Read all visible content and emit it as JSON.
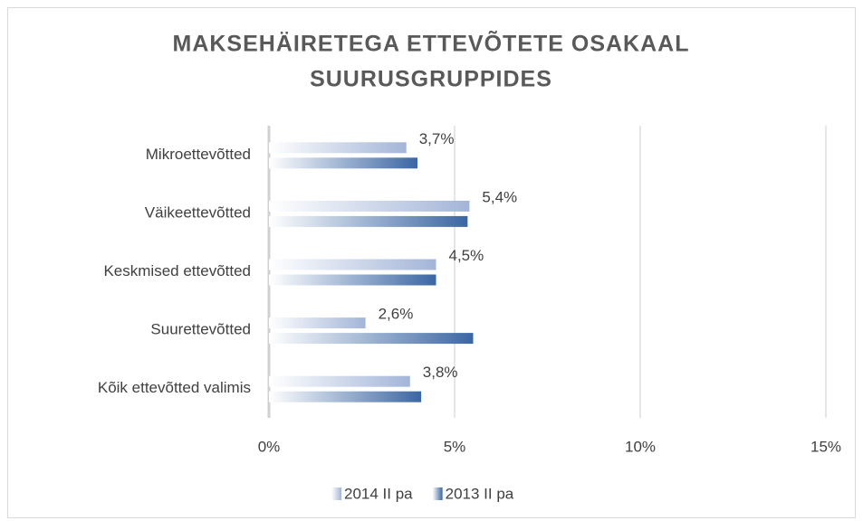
{
  "chart_data": {
    "type": "hbar",
    "title": [
      "MAKSEHÄIRETEGA ETTEVÕTETE OSAKAAL",
      "SUURUSGRUPPIDES"
    ],
    "categories": [
      "Mikroettevõtted",
      "Väikeettevõtted",
      "Keskmised ettevõtted",
      "Suurettevõtted",
      "Kõik ettevõtted valimis"
    ],
    "series": [
      {
        "name": "2014 II pa",
        "color": "#a3b5d8",
        "values": [
          3.7,
          5.4,
          4.5,
          2.6,
          3.8
        ],
        "value_labels": [
          "3,7%",
          "5,4%",
          "4,5%",
          "2,6%",
          "3,8%"
        ]
      },
      {
        "name": "2013 II pa",
        "color": "#3b66a3",
        "values": [
          4.0,
          5.35,
          4.5,
          5.5,
          4.1
        ]
      }
    ],
    "xlim": [
      0,
      15.4
    ],
    "xticks": [
      {
        "value": 0,
        "label": "0%"
      },
      {
        "value": 5,
        "label": "5%"
      },
      {
        "value": 10,
        "label": "10%"
      },
      {
        "value": 15,
        "label": "15%"
      }
    ],
    "grid": true,
    "legend": "bottom"
  }
}
